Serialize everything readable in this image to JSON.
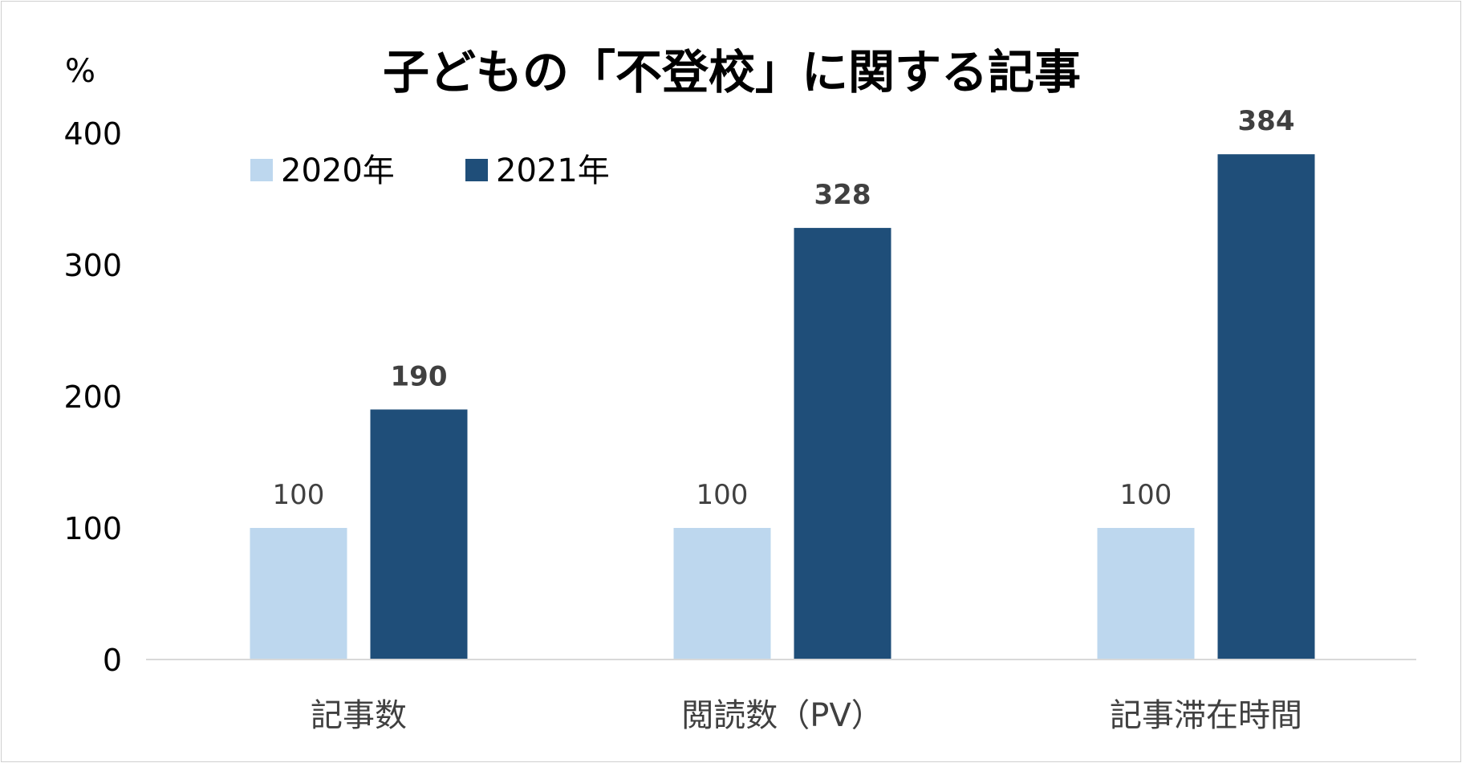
{
  "chart_data": {
    "type": "bar",
    "title": "子どもの「不登校」に関する記事",
    "ylabel": "%",
    "xlabel": "",
    "ylim": [
      0,
      400
    ],
    "yticks": [
      0,
      100,
      200,
      300,
      400
    ],
    "categories": [
      "記事数",
      "閲読数（PV）",
      "記事滞在時間"
    ],
    "series": [
      {
        "name": "2020年",
        "values": [
          100,
          100,
          100
        ],
        "color": "#bdd7ee"
      },
      {
        "name": "2021年",
        "values": [
          190,
          328,
          384
        ],
        "color": "#1f4e79"
      }
    ],
    "legend_position": "top-left",
    "grid": false
  }
}
